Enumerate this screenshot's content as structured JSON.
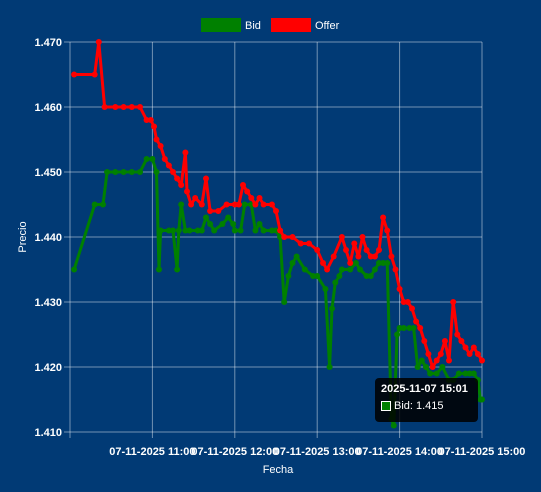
{
  "chart_data": {
    "type": "line",
    "xlabel": "Fecha",
    "ylabel": "Precio",
    "ylim": [
      1.41,
      1.47
    ],
    "y_ticks": [
      "1.410",
      "1.420",
      "1.430",
      "1.440",
      "1.450",
      "1.460",
      "1.470"
    ],
    "x_ticks": [
      "07-11-2025 11:00",
      "07-11-2025 12:00",
      "07-11-2025 13:00",
      "07-11-2025 14:00",
      "07-11-2025 15:00"
    ],
    "xlim_hours": [
      10.0,
      15.0
    ],
    "legend_position": "top",
    "grid": true,
    "series": [
      {
        "name": "Bid",
        "color": "#008000",
        "points": [
          [
            10.05,
            1.435
          ],
          [
            10.3,
            1.445
          ],
          [
            10.4,
            1.445
          ],
          [
            10.45,
            1.45
          ],
          [
            10.55,
            1.45
          ],
          [
            10.65,
            1.45
          ],
          [
            10.75,
            1.45
          ],
          [
            10.85,
            1.45
          ],
          [
            10.93,
            1.452
          ],
          [
            11.0,
            1.452
          ],
          [
            11.05,
            1.45
          ],
          [
            11.08,
            1.435
          ],
          [
            11.1,
            1.441
          ],
          [
            11.2,
            1.441
          ],
          [
            11.25,
            1.441
          ],
          [
            11.3,
            1.435
          ],
          [
            11.32,
            1.441
          ],
          [
            11.35,
            1.445
          ],
          [
            11.4,
            1.441
          ],
          [
            11.45,
            1.441
          ],
          [
            11.55,
            1.441
          ],
          [
            11.6,
            1.441
          ],
          [
            11.65,
            1.443
          ],
          [
            11.7,
            1.442
          ],
          [
            11.75,
            1.441
          ],
          [
            11.85,
            1.442
          ],
          [
            11.92,
            1.443
          ],
          [
            11.98,
            1.442
          ],
          [
            12.0,
            1.441
          ],
          [
            12.07,
            1.441
          ],
          [
            12.12,
            1.445
          ],
          [
            12.2,
            1.445
          ],
          [
            12.25,
            1.441
          ],
          [
            12.3,
            1.442
          ],
          [
            12.35,
            1.441
          ],
          [
            12.45,
            1.441
          ],
          [
            12.5,
            1.441
          ],
          [
            12.55,
            1.44
          ],
          [
            12.6,
            1.43
          ],
          [
            12.65,
            1.434
          ],
          [
            12.7,
            1.436
          ],
          [
            12.75,
            1.437
          ],
          [
            12.85,
            1.435
          ],
          [
            12.95,
            1.434
          ],
          [
            13.0,
            1.434
          ],
          [
            13.1,
            1.432
          ],
          [
            13.15,
            1.42
          ],
          [
            13.18,
            1.429
          ],
          [
            13.22,
            1.433
          ],
          [
            13.27,
            1.434
          ],
          [
            13.3,
            1.435
          ],
          [
            13.4,
            1.435
          ],
          [
            13.47,
            1.436
          ],
          [
            13.52,
            1.435
          ],
          [
            13.6,
            1.434
          ],
          [
            13.65,
            1.434
          ],
          [
            13.7,
            1.435
          ],
          [
            13.75,
            1.436
          ],
          [
            13.8,
            1.436
          ],
          [
            13.85,
            1.436
          ],
          [
            13.9,
            1.412
          ],
          [
            13.93,
            1.411
          ],
          [
            13.97,
            1.425
          ],
          [
            14.0,
            1.426
          ],
          [
            14.05,
            1.426
          ],
          [
            14.12,
            1.426
          ],
          [
            14.17,
            1.426
          ],
          [
            14.22,
            1.42
          ],
          [
            14.27,
            1.421
          ],
          [
            14.32,
            1.42
          ],
          [
            14.37,
            1.419
          ],
          [
            14.45,
            1.419
          ],
          [
            14.52,
            1.42
          ],
          [
            14.6,
            1.418
          ],
          [
            14.65,
            1.418
          ],
          [
            14.72,
            1.419
          ],
          [
            14.8,
            1.419
          ],
          [
            14.85,
            1.419
          ],
          [
            14.9,
            1.419
          ],
          [
            14.95,
            1.418
          ],
          [
            14.98,
            1.415
          ],
          [
            15.0,
            1.415
          ]
        ]
      },
      {
        "name": "Offer",
        "color": "#ff0000",
        "points": [
          [
            10.05,
            1.465
          ],
          [
            10.3,
            1.465
          ],
          [
            10.35,
            1.47
          ],
          [
            10.42,
            1.46
          ],
          [
            10.55,
            1.46
          ],
          [
            10.65,
            1.46
          ],
          [
            10.75,
            1.46
          ],
          [
            10.85,
            1.46
          ],
          [
            10.93,
            1.458
          ],
          [
            10.98,
            1.458
          ],
          [
            11.02,
            1.457
          ],
          [
            11.05,
            1.455
          ],
          [
            11.1,
            1.454
          ],
          [
            11.15,
            1.452
          ],
          [
            11.2,
            1.451
          ],
          [
            11.25,
            1.45
          ],
          [
            11.3,
            1.449
          ],
          [
            11.35,
            1.448
          ],
          [
            11.4,
            1.453
          ],
          [
            11.42,
            1.447
          ],
          [
            11.47,
            1.445
          ],
          [
            11.52,
            1.446
          ],
          [
            11.6,
            1.445
          ],
          [
            11.65,
            1.449
          ],
          [
            11.7,
            1.444
          ],
          [
            11.8,
            1.444
          ],
          [
            11.9,
            1.445
          ],
          [
            12.0,
            1.445
          ],
          [
            12.05,
            1.445
          ],
          [
            12.1,
            1.448
          ],
          [
            12.15,
            1.447
          ],
          [
            12.2,
            1.446
          ],
          [
            12.25,
            1.445
          ],
          [
            12.3,
            1.446
          ],
          [
            12.35,
            1.445
          ],
          [
            12.45,
            1.445
          ],
          [
            12.5,
            1.444
          ],
          [
            12.55,
            1.441
          ],
          [
            12.6,
            1.44
          ],
          [
            12.7,
            1.44
          ],
          [
            12.8,
            1.439
          ],
          [
            12.9,
            1.439
          ],
          [
            13.0,
            1.438
          ],
          [
            13.07,
            1.436
          ],
          [
            13.12,
            1.435
          ],
          [
            13.2,
            1.437
          ],
          [
            13.3,
            1.44
          ],
          [
            13.35,
            1.438
          ],
          [
            13.4,
            1.436
          ],
          [
            13.45,
            1.439
          ],
          [
            13.5,
            1.437
          ],
          [
            13.55,
            1.44
          ],
          [
            13.6,
            1.438
          ],
          [
            13.65,
            1.437
          ],
          [
            13.7,
            1.437
          ],
          [
            13.75,
            1.438
          ],
          [
            13.8,
            1.443
          ],
          [
            13.85,
            1.441
          ],
          [
            13.9,
            1.437
          ],
          [
            13.95,
            1.435
          ],
          [
            14.0,
            1.432
          ],
          [
            14.05,
            1.43
          ],
          [
            14.1,
            1.43
          ],
          [
            14.15,
            1.429
          ],
          [
            14.2,
            1.427
          ],
          [
            14.25,
            1.426
          ],
          [
            14.3,
            1.424
          ],
          [
            14.35,
            1.422
          ],
          [
            14.4,
            1.42
          ],
          [
            14.45,
            1.421
          ],
          [
            14.5,
            1.422
          ],
          [
            14.55,
            1.424
          ],
          [
            14.6,
            1.421
          ],
          [
            14.65,
            1.43
          ],
          [
            14.7,
            1.425
          ],
          [
            14.75,
            1.424
          ],
          [
            14.8,
            1.423
          ],
          [
            14.85,
            1.422
          ],
          [
            14.9,
            1.423
          ],
          [
            14.95,
            1.422
          ],
          [
            15.0,
            1.421
          ]
        ]
      }
    ]
  },
  "tooltip": {
    "title": "2025-11-07 15:01",
    "label": "Bid: 1.415"
  }
}
